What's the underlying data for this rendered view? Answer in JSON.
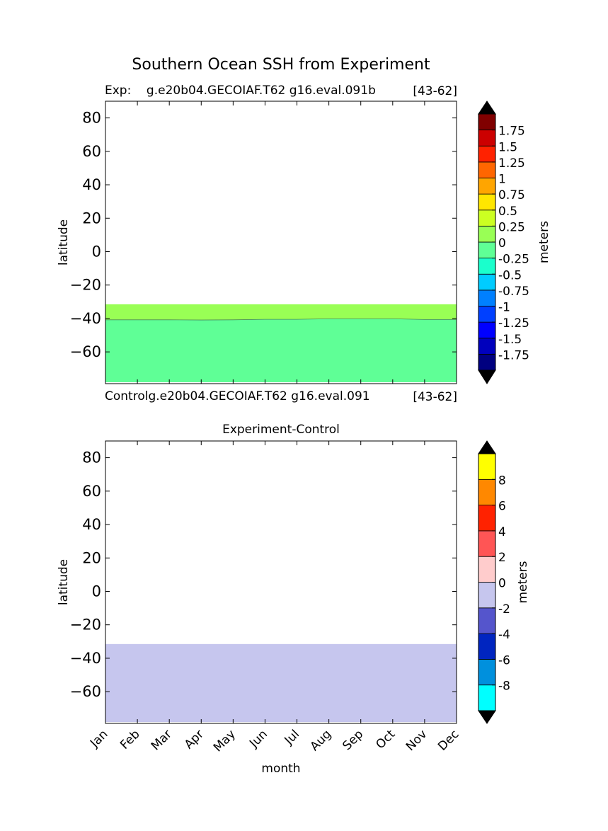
{
  "figure": {
    "title": "Southern Ocean SSH from Experiment"
  },
  "chart_data": [
    {
      "type": "heatmap",
      "panel": "experiment",
      "label_left": "Exp:    g.e20b04.GECOIAF.T62 g16.eval.091b",
      "label_right": "[43-62]",
      "xlabel": "",
      "ylabel": "latitude",
      "yticks": [
        80,
        60,
        40,
        20,
        0,
        -20,
        -40,
        -60
      ],
      "ylim": [
        -79,
        90
      ],
      "xlim": [
        0,
        11
      ],
      "ocean_top_lat": -31.5,
      "regions": [
        {
          "name": "0 to 0.25",
          "color": "#99ff55",
          "from": "ocean_top",
          "to": "boundary"
        },
        {
          "name": "-0.25 to 0",
          "color": "#5fff96",
          "from": "boundary",
          "to": "ylim_min"
        }
      ],
      "boundary": {
        "x": [
          0,
          1,
          2,
          3,
          4,
          5,
          6,
          7,
          8,
          9,
          10,
          11
        ],
        "lat": [
          -40.8,
          -40.8,
          -40.8,
          -40.9,
          -40.8,
          -40.5,
          -40.5,
          -40.2,
          -40.2,
          -40.2,
          -40.6,
          -40.6
        ]
      },
      "colorbar": {
        "label": "meters",
        "colors": [
          "#000080",
          "#0000bd",
          "#0000ff",
          "#0040ff",
          "#0080ff",
          "#00ccff",
          "#1affcc",
          "#5fff96",
          "#99ff55",
          "#ccff22",
          "#ffe600",
          "#ffa500",
          "#ff6600",
          "#ff2200",
          "#cc0000",
          "#800000"
        ],
        "extend_colors": [
          "#000000",
          "#000000"
        ],
        "tick_labels": [
          "-1.75",
          "-1.5",
          "-1.25",
          "-1",
          "-0.75",
          "-0.5",
          "-0.25",
          "0",
          "0.25",
          "0.5",
          "0.75",
          "1",
          "1.25",
          "1.5",
          "1.75"
        ]
      }
    },
    {
      "type": "heatmap",
      "panel": "difference",
      "title": "Experiment-Control",
      "label_left": "Controlg.e20b04.GECOIAF.T62 g16.eval.091",
      "label_right": "[43-62]",
      "xlabel": "month",
      "ylabel": "latitude",
      "categories": [
        "Jan",
        "Feb",
        "Mar",
        "Apr",
        "May",
        "Jun",
        "Jul",
        "Aug",
        "Sep",
        "Oct",
        "Nov",
        "Dec"
      ],
      "yticks": [
        80,
        60,
        40,
        20,
        0,
        -20,
        -40,
        -60
      ],
      "ylim": [
        -79,
        90
      ],
      "xlim": [
        0,
        11
      ],
      "ocean_top_lat": -31.5,
      "fill_color": "#c6c6ee",
      "fill_range": "-2 to 0",
      "colorbar": {
        "label": "meters",
        "colors": [
          "#00ffff",
          "#0090dd",
          "#0025c0",
          "#5555cc",
          "#c6c6ee",
          "#ffcccc",
          "#ff5555",
          "#ff2200",
          "#ff8800",
          "#ffff00"
        ],
        "extend_colors": [
          "#000000",
          "#000000"
        ],
        "tick_labels": [
          "-8",
          "-6",
          "-4",
          "-2",
          "0",
          "2",
          "4",
          "6",
          "8"
        ]
      }
    }
  ]
}
